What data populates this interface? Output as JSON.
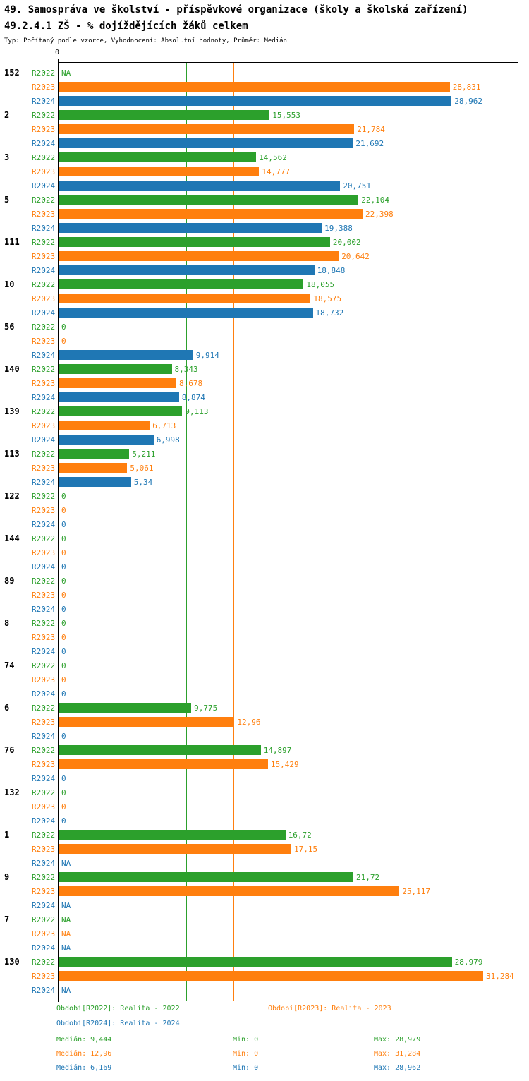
{
  "header": {
    "title": "49. Samospráva ve školství - příspěvkové organizace (školy a školská zařízení)",
    "subtitle": "49.2.4.1 ZŠ - % dojíždějících žáků celkem",
    "meta": "Typ: Počítaný podle vzorce, Vyhodnocení: Absolutní hodnoty, Průměr: Medián"
  },
  "chart_data": {
    "type": "bar",
    "orientation": "horizontal",
    "x_axis": {
      "origin_label": "0",
      "data_max": 31.284
    },
    "series": [
      "R2022",
      "R2023",
      "R2024"
    ],
    "colors": {
      "R2022": "#2ca02c",
      "R2023": "#ff7f0e",
      "R2024": "#1f77b4"
    },
    "median_lines": [
      {
        "series": "R2022",
        "value": 9.444
      },
      {
        "series": "R2023",
        "value": 12.96
      },
      {
        "series": "R2024",
        "value": 6.169
      }
    ],
    "groups": [
      {
        "id": "152",
        "values": [
          null,
          28.831,
          28.962
        ],
        "labels": [
          "NA",
          "28,831",
          "28,962"
        ]
      },
      {
        "id": "2",
        "values": [
          15.553,
          21.784,
          21.692
        ],
        "labels": [
          "15,553",
          "21,784",
          "21,692"
        ]
      },
      {
        "id": "3",
        "values": [
          14.562,
          14.777,
          20.751
        ],
        "labels": [
          "14,562",
          "14,777",
          "20,751"
        ]
      },
      {
        "id": "5",
        "values": [
          22.104,
          22.398,
          19.388
        ],
        "labels": [
          "22,104",
          "22,398",
          "19,388"
        ]
      },
      {
        "id": "111",
        "values": [
          20.002,
          20.642,
          18.848
        ],
        "labels": [
          "20,002",
          "20,642",
          "18,848"
        ]
      },
      {
        "id": "10",
        "values": [
          18.055,
          18.575,
          18.732
        ],
        "labels": [
          "18,055",
          "18,575",
          "18,732"
        ]
      },
      {
        "id": "56",
        "values": [
          0,
          0,
          9.914
        ],
        "labels": [
          "0",
          "0",
          "9,914"
        ]
      },
      {
        "id": "140",
        "values": [
          8.343,
          8.678,
          8.874
        ],
        "labels": [
          "8,343",
          "8,678",
          "8,874"
        ]
      },
      {
        "id": "139",
        "values": [
          9.113,
          6.713,
          6.998
        ],
        "labels": [
          "9,113",
          "6,713",
          "6,998"
        ]
      },
      {
        "id": "113",
        "values": [
          5.211,
          5.061,
          5.34
        ],
        "labels": [
          "5,211",
          "5,061",
          "5,34"
        ]
      },
      {
        "id": "122",
        "values": [
          0,
          0,
          0
        ],
        "labels": [
          "0",
          "0",
          "0"
        ]
      },
      {
        "id": "144",
        "values": [
          0,
          0,
          0
        ],
        "labels": [
          "0",
          "0",
          "0"
        ]
      },
      {
        "id": "89",
        "values": [
          0,
          0,
          0
        ],
        "labels": [
          "0",
          "0",
          "0"
        ]
      },
      {
        "id": "8",
        "values": [
          0,
          0,
          0
        ],
        "labels": [
          "0",
          "0",
          "0"
        ]
      },
      {
        "id": "74",
        "values": [
          0,
          0,
          0
        ],
        "labels": [
          "0",
          "0",
          "0"
        ]
      },
      {
        "id": "6",
        "values": [
          9.775,
          12.96,
          0
        ],
        "labels": [
          "9,775",
          "12,96",
          "0"
        ]
      },
      {
        "id": "76",
        "values": [
          14.897,
          15.429,
          0
        ],
        "labels": [
          "14,897",
          "15,429",
          "0"
        ]
      },
      {
        "id": "132",
        "values": [
          0,
          0,
          0
        ],
        "labels": [
          "0",
          "0",
          "0"
        ]
      },
      {
        "id": "1",
        "values": [
          16.72,
          17.15,
          null
        ],
        "labels": [
          "16,72",
          "17,15",
          "NA"
        ]
      },
      {
        "id": "9",
        "values": [
          21.72,
          25.117,
          null
        ],
        "labels": [
          "21,72",
          "25,117",
          "NA"
        ]
      },
      {
        "id": "7",
        "values": [
          null,
          null,
          null
        ],
        "labels": [
          "NA",
          "NA",
          "NA"
        ]
      },
      {
        "id": "130",
        "values": [
          28.979,
          31.284,
          null
        ],
        "labels": [
          "28,979",
          "31,284",
          "NA"
        ]
      }
    ]
  },
  "legend": {
    "periods": [
      {
        "series": "R2022",
        "label": "Období[R2022]: Realita - 2022"
      },
      {
        "series": "R2023",
        "label": "Období[R2023]: Realita - 2023"
      },
      {
        "series": "R2024",
        "label": "Období[R2024]: Realita - 2024"
      }
    ],
    "stats": [
      {
        "series": "R2022",
        "median": "Medián: 9,444",
        "min": "Min: 0",
        "max": "Max: 28,979"
      },
      {
        "series": "R2023",
        "median": "Medián: 12,96",
        "min": "Min: 0",
        "max": "Max: 31,284"
      },
      {
        "series": "R2024",
        "median": "Medián: 6,169",
        "min": "Min: 0",
        "max": "Max: 28,962"
      }
    ]
  }
}
